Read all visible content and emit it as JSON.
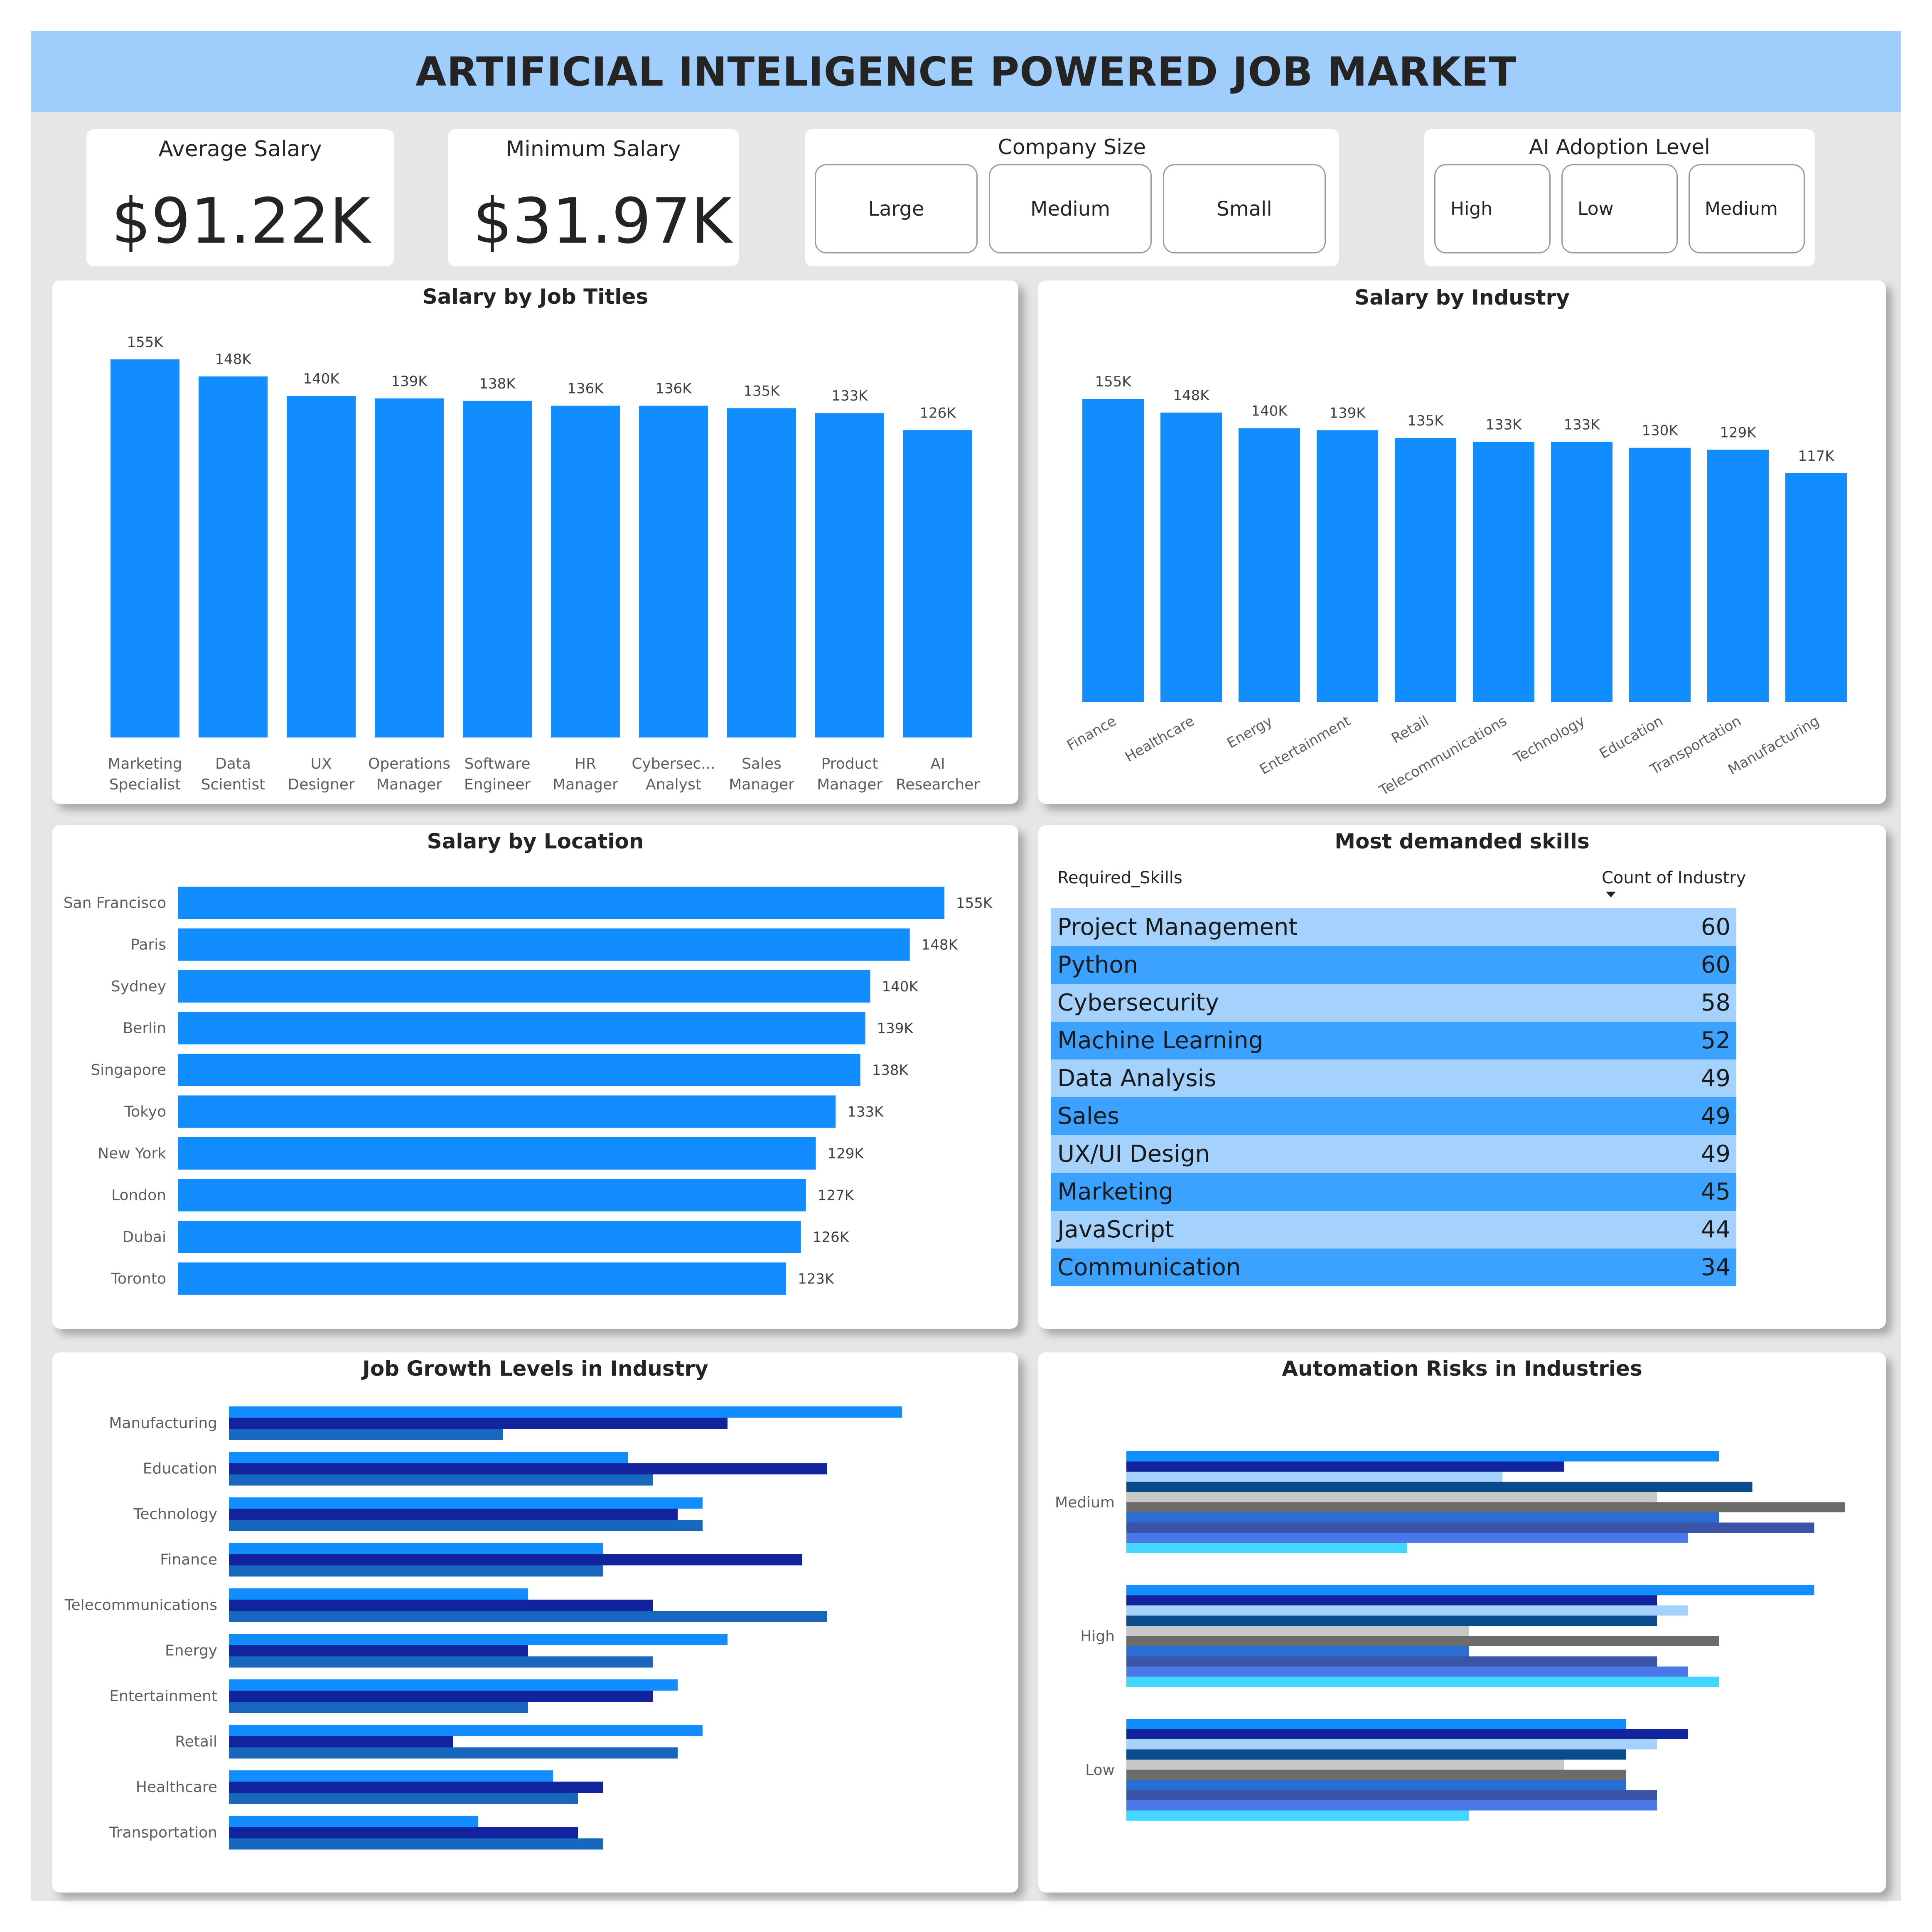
{
  "header": {
    "title": "ARTIFICIAL INTELIGENCE POWERED JOB MARKET"
  },
  "kpis": {
    "avg_label": "Average Salary",
    "avg_value": "$91.22K",
    "min_label": "Minimum Salary",
    "min_value": "$31.97K"
  },
  "slicers": {
    "company_size": {
      "title": "Company Size",
      "options": [
        "Large",
        "Medium",
        "Small"
      ]
    },
    "ai_adoption": {
      "title": "AI Adoption Level",
      "options": [
        "High",
        "Low",
        "Medium"
      ]
    }
  },
  "colors": {
    "primary_bar": "#118dff",
    "dark_navy": "#12239e",
    "mid_blue": "#1767be",
    "header_bg": "#9fcdfc",
    "table_light": "#a5d2fd",
    "table_dark": "#3ba2ff"
  },
  "chart_data": [
    {
      "id": "job_titles",
      "type": "bar",
      "title": "Salary by Job Titles",
      "categories": [
        "Marketing Specialist",
        "Data Scientist",
        "UX Designer",
        "Operations Manager",
        "Software Engineer",
        "HR Manager",
        "Cybersec... Analyst",
        "Sales Manager",
        "Product Manager",
        "AI Researcher"
      ],
      "category_lines": [
        [
          "Marketing",
          "Specialist"
        ],
        [
          "Data",
          "Scientist"
        ],
        [
          "UX",
          "Designer"
        ],
        [
          "Operations",
          "Manager"
        ],
        [
          "Software",
          "Engineer"
        ],
        [
          "HR",
          "Manager"
        ],
        [
          "Cybersec...",
          "Analyst"
        ],
        [
          "Sales",
          "Manager"
        ],
        [
          "Product",
          "Manager"
        ],
        [
          "AI",
          "Researcher"
        ]
      ],
      "values": [
        155000,
        148000,
        140000,
        139000,
        138000,
        136000,
        136000,
        135000,
        133000,
        126000
      ],
      "data_labels": [
        "155K",
        "148K",
        "140K",
        "139K",
        "138K",
        "136K",
        "136K",
        "135K",
        "133K",
        "126K"
      ],
      "ylim": [
        0,
        155000
      ]
    },
    {
      "id": "industry",
      "type": "bar",
      "title": "Salary by Industry",
      "categories": [
        "Finance",
        "Healthcare",
        "Energy",
        "Entertainment",
        "Retail",
        "Telecommunications",
        "Technology",
        "Education",
        "Transportation",
        "Manufacturing"
      ],
      "values": [
        155000,
        148000,
        140000,
        139000,
        135000,
        133000,
        133000,
        130000,
        129000,
        117000
      ],
      "data_labels": [
        "155K",
        "148K",
        "140K",
        "139K",
        "135K",
        "133K",
        "133K",
        "130K",
        "129K",
        "117K"
      ],
      "ylim": [
        0,
        155000
      ]
    },
    {
      "id": "location",
      "type": "bar",
      "orientation": "horizontal",
      "title": "Salary by Location",
      "categories": [
        "San Francisco",
        "Paris",
        "Sydney",
        "Berlin",
        "Singapore",
        "Tokyo",
        "New York",
        "London",
        "Dubai",
        "Toronto"
      ],
      "values": [
        155000,
        148000,
        140000,
        139000,
        138000,
        133000,
        129000,
        127000,
        126000,
        123000
      ],
      "data_labels": [
        "155K",
        "148K",
        "140K",
        "139K",
        "138K",
        "133K",
        "129K",
        "127K",
        "126K",
        "123K"
      ],
      "xlim": [
        0,
        155000
      ]
    },
    {
      "id": "skills",
      "type": "table",
      "title": "Most demanded skills",
      "columns": [
        "Required_Skills",
        "Count of Industry"
      ],
      "rows": [
        [
          "Project Management",
          "60"
        ],
        [
          "Python",
          "60"
        ],
        [
          "Cybersecurity",
          "58"
        ],
        [
          "Machine Learning",
          "52"
        ],
        [
          "Data Analysis",
          "49"
        ],
        [
          "Sales",
          "49"
        ],
        [
          "UX/UI Design",
          "49"
        ],
        [
          "Marketing",
          "45"
        ],
        [
          "JavaScript",
          "44"
        ],
        [
          "Communication",
          "34"
        ]
      ]
    },
    {
      "id": "job_growth",
      "type": "bar",
      "orientation": "horizontal",
      "title": "Job Growth Levels in Industry",
      "categories": [
        "Manufacturing",
        "Education",
        "Technology",
        "Finance",
        "Telecommunications",
        "Energy",
        "Entertainment",
        "Retail",
        "Healthcare",
        "Transportation"
      ],
      "series": [
        {
          "values": [
            27,
            16,
            19,
            15,
            12,
            20,
            18,
            19,
            13,
            10
          ],
          "color": "#118dff"
        },
        {
          "values": [
            20,
            24,
            18,
            23,
            17,
            12,
            17,
            9,
            15,
            14
          ],
          "color": "#12239e"
        },
        {
          "values": [
            11,
            17,
            19,
            15,
            24,
            17,
            12,
            18,
            14,
            15
          ],
          "color": "#1767be"
        }
      ],
      "xlim": [
        0,
        30
      ]
    },
    {
      "id": "automation",
      "type": "bar",
      "orientation": "horizontal",
      "title": "Automation Risks in Industries",
      "categories": [
        "Medium",
        "High",
        "Low"
      ],
      "series": [
        {
          "values": [
            23,
            26.7,
            19.4
          ],
          "color": "#118dff"
        },
        {
          "values": [
            17,
            20.6,
            21.8
          ],
          "color": "#12239e"
        },
        {
          "values": [
            14.6,
            21.8,
            20.6
          ],
          "color": "#a5d2fd"
        },
        {
          "values": [
            24.3,
            20.6,
            19.4
          ],
          "color": "#0a4b8c"
        },
        {
          "values": [
            20.6,
            13.3,
            17
          ],
          "color": "#c8c8c8"
        },
        {
          "values": [
            27.9,
            23,
            19.4
          ],
          "color": "#6b6b6b"
        },
        {
          "values": [
            23,
            13.3,
            19.4
          ],
          "color": "#2a6ed4"
        },
        {
          "values": [
            26.7,
            20.6,
            20.6
          ],
          "color": "#3a55a8"
        },
        {
          "values": [
            21.8,
            21.8,
            20.6
          ],
          "color": "#4a78e8"
        },
        {
          "values": [
            10.9,
            23,
            13.3
          ],
          "color": "#43d6ff"
        }
      ],
      "xlim": [
        0,
        30
      ]
    }
  ]
}
